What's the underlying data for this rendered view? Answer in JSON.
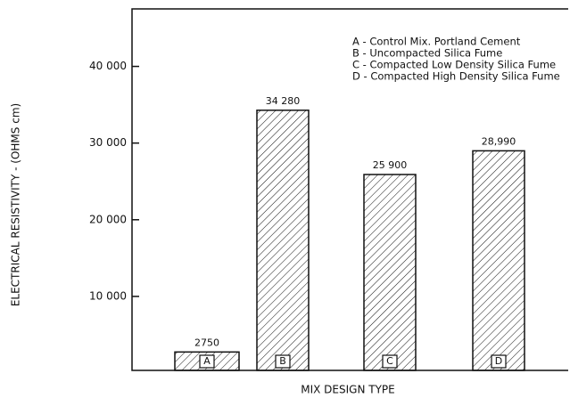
{
  "chart_data": {
    "type": "bar",
    "x_label": "MIX DESIGN TYPE",
    "y_label": "ELECTRICAL RESISTIVITY - (OHMS cm)",
    "categories": [
      "A",
      "B",
      "C",
      "D"
    ],
    "values": [
      2750,
      34280,
      25900,
      28990
    ],
    "value_labels": [
      "2750",
      "34 280",
      "25 900",
      "28,990"
    ],
    "legend": [
      "A - Control Mix. Portland Cement",
      "B - Uncompacted Silica Fume",
      "C - Compacted Low Density Silica Fume",
      "D - Compacted High Density Silica Fume"
    ],
    "color": "#111111",
    "ylim": [
      0,
      47500
    ],
    "yticks": [
      {
        "value": 10000,
        "label": "10 000"
      },
      {
        "value": 20000,
        "label": "20 000"
      },
      {
        "value": 30000,
        "label": "30 000"
      },
      {
        "value": 40000,
        "label": "40 000"
      }
    ],
    "grid": false
  }
}
